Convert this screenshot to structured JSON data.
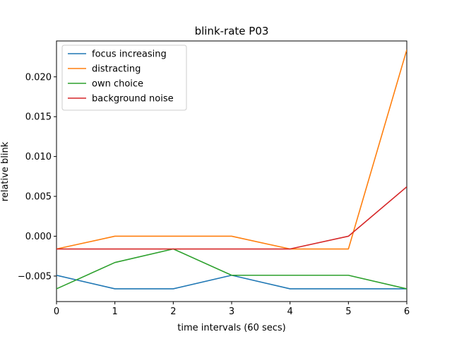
{
  "chart_data": {
    "type": "line",
    "title": "blink-rate P03",
    "xlabel": "time intervals (60 secs)",
    "ylabel": "relative blink",
    "x": [
      0,
      1,
      2,
      3,
      4,
      5,
      6
    ],
    "xlim": [
      0,
      6
    ],
    "ylim": [
      -0.0082,
      0.0245
    ],
    "xticks": [
      0,
      1,
      2,
      3,
      4,
      5,
      6
    ],
    "yticks": [
      -0.005,
      0.0,
      0.005,
      0.01,
      0.015,
      0.02
    ],
    "ytick_labels": [
      "−0.005",
      "0.000",
      "0.005",
      "0.010",
      "0.015",
      "0.020"
    ],
    "grid": false,
    "legend_position": "top-left",
    "series": [
      {
        "name": "focus increasing",
        "color": "#1f77b4",
        "values": [
          -0.0049,
          -0.0066,
          -0.0066,
          -0.0049,
          -0.0066,
          -0.0066,
          -0.0066
        ]
      },
      {
        "name": "distracting",
        "color": "#ff7f0e",
        "values": [
          -0.0016,
          0.0,
          0.0,
          0.0,
          -0.0016,
          -0.0016,
          0.0234
        ]
      },
      {
        "name": "own choice",
        "color": "#2ca02c",
        "values": [
          -0.0066,
          -0.0033,
          -0.0016,
          -0.0049,
          -0.0049,
          -0.0049,
          -0.0066
        ]
      },
      {
        "name": "background noise",
        "color": "#d62728",
        "values": [
          -0.0016,
          -0.0016,
          -0.0016,
          -0.0016,
          -0.0016,
          0.0,
          0.0062
        ]
      }
    ]
  }
}
